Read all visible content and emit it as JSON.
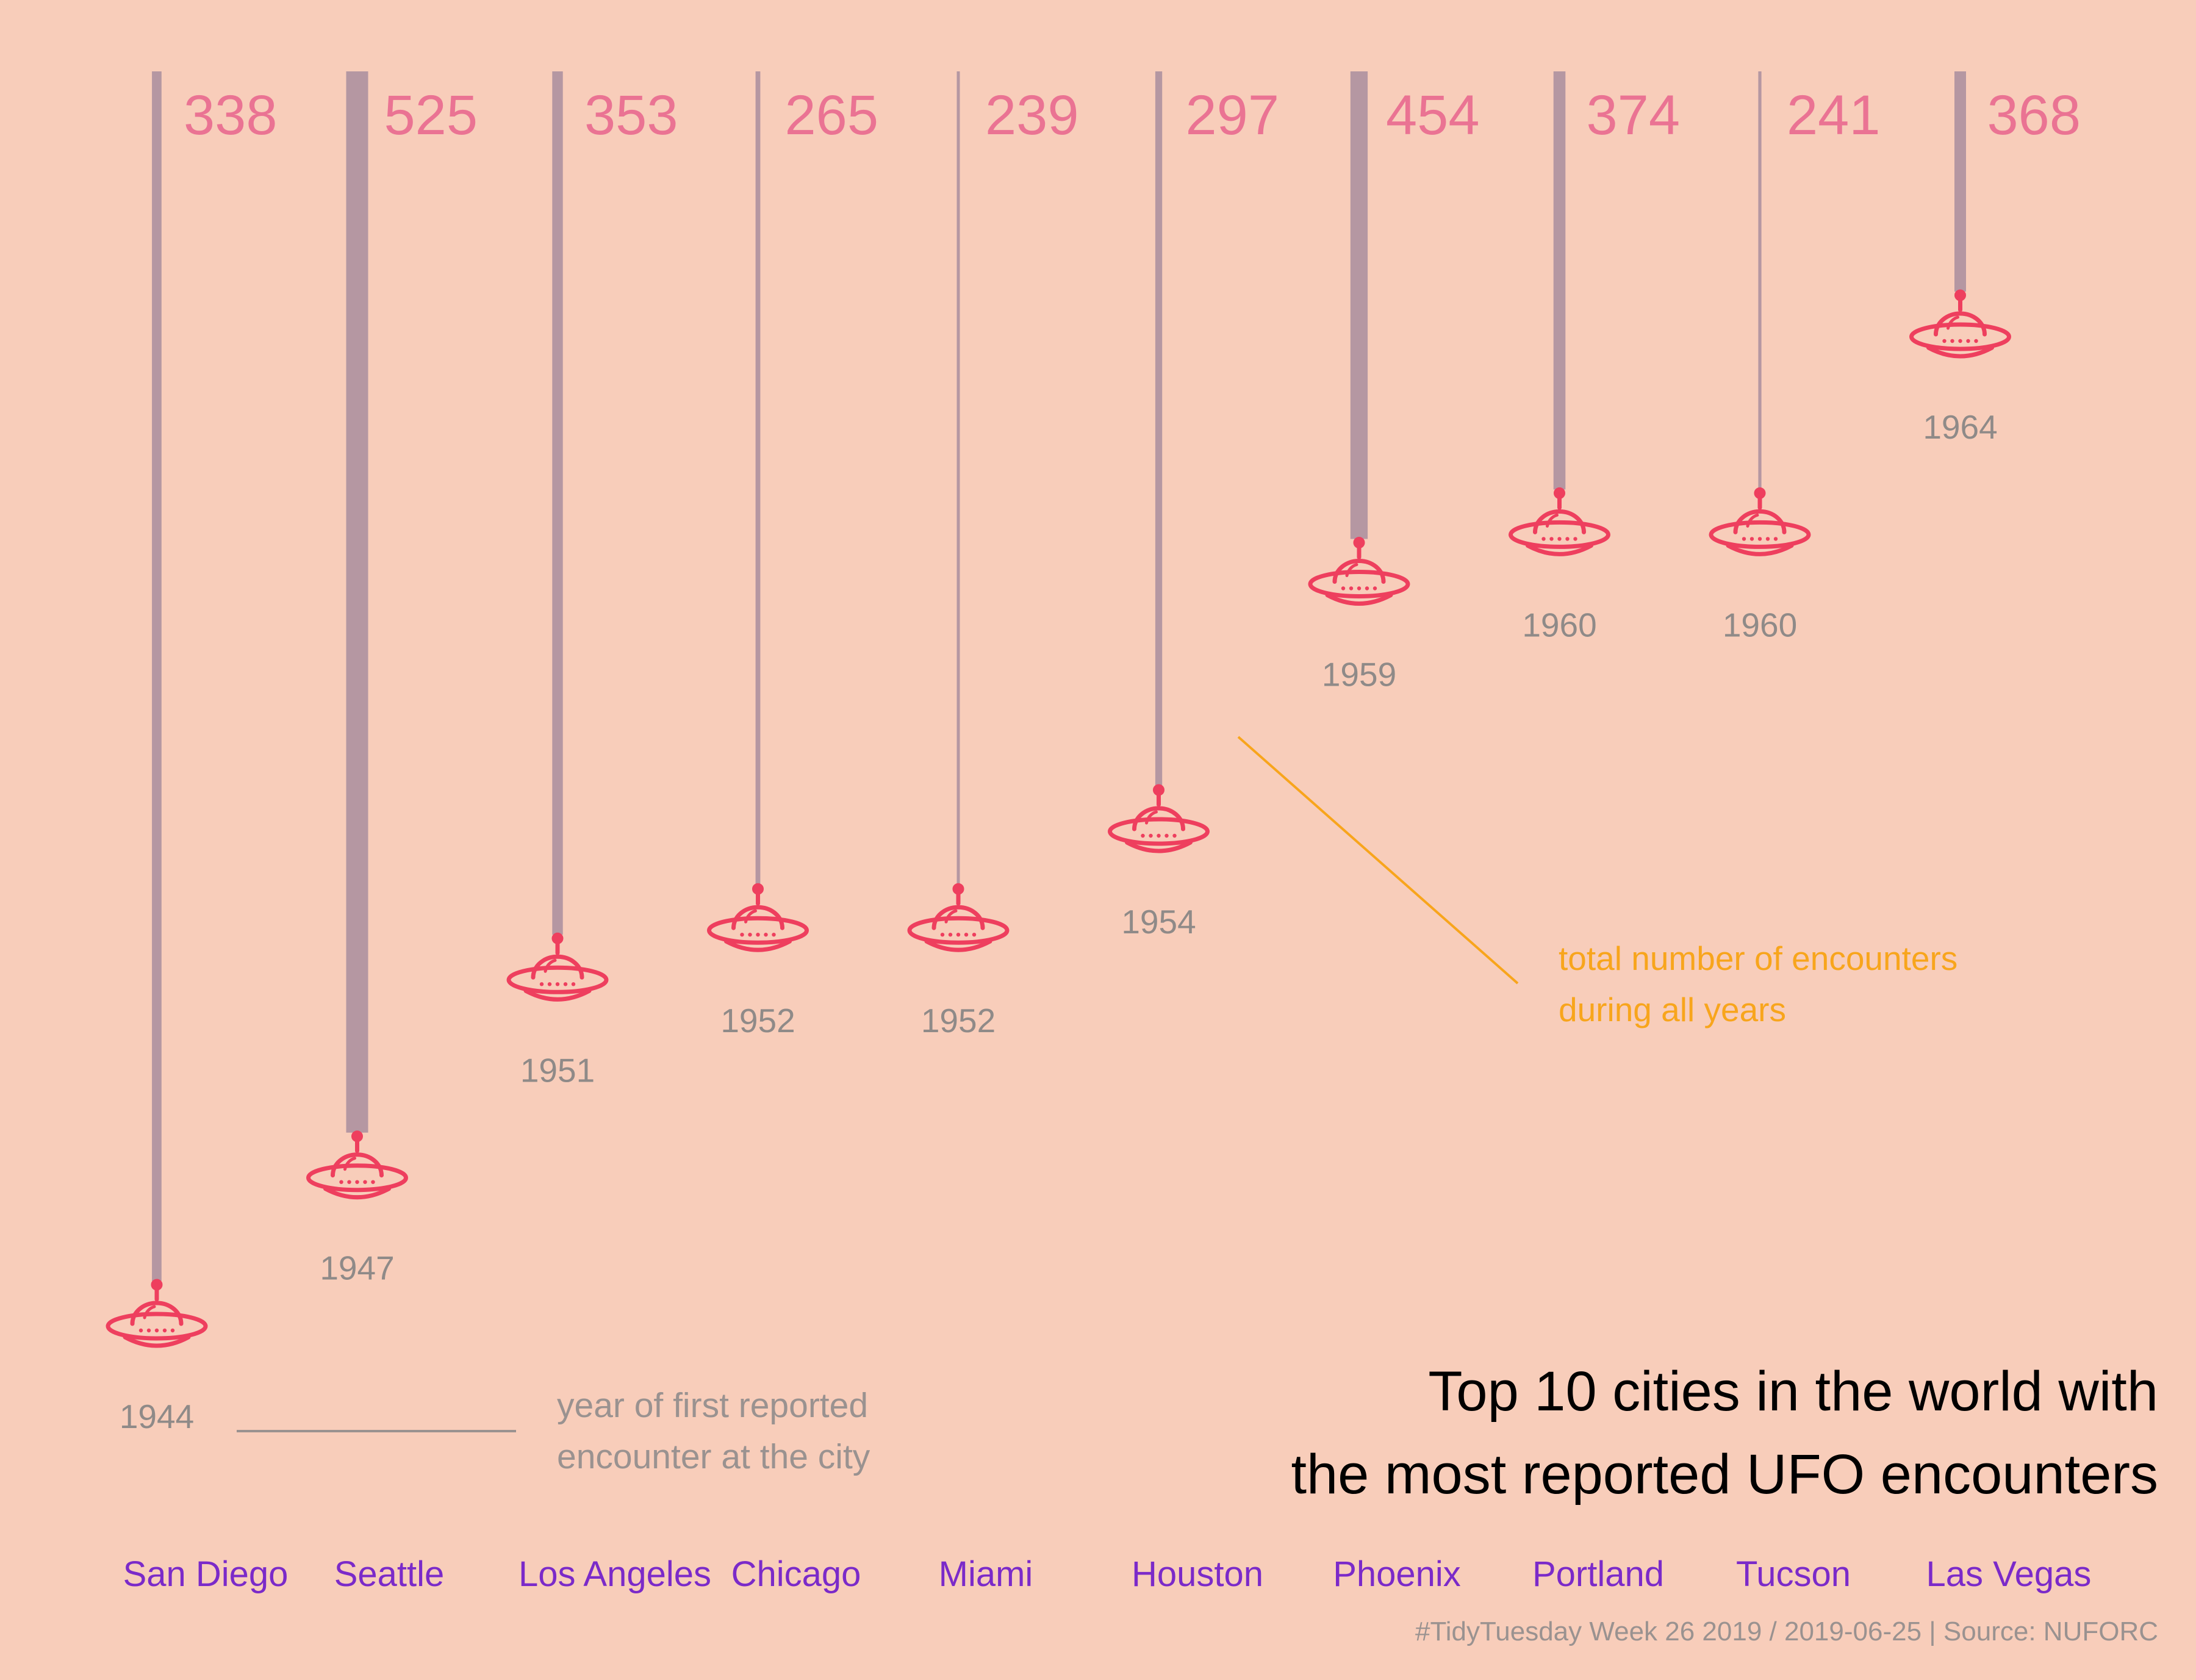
{
  "chart_data": {
    "type": "bar",
    "title_lines": [
      "Top 10 cities in the world with",
      "the most reported UFO encounters"
    ],
    "caption": "#TidyTuesday Week 26 2019 / 2019-06-25 | Source: NUFORC",
    "series": [
      {
        "name": "year of first reported encounter at the city"
      },
      {
        "name": "total number of encounters during all years"
      }
    ],
    "points": [
      {
        "city": "San Diego",
        "first_year": 1944,
        "count": 338
      },
      {
        "city": "Seattle",
        "first_year": 1947,
        "count": 525
      },
      {
        "city": "Los Angeles",
        "first_year": 1951,
        "count": 353
      },
      {
        "city": "Chicago",
        "first_year": 1952,
        "count": 265
      },
      {
        "city": "Miami",
        "first_year": 1952,
        "count": 239
      },
      {
        "city": "Houston",
        "first_year": 1954,
        "count": 297
      },
      {
        "city": "Phoenix",
        "first_year": 1959,
        "count": 454
      },
      {
        "city": "Portland",
        "first_year": 1960,
        "count": 374
      },
      {
        "city": "Tucson",
        "first_year": 1960,
        "count": 241
      },
      {
        "city": "Las Vegas",
        "first_year": 1964,
        "count": 368
      }
    ],
    "annotations": {
      "year_note": [
        "year of first reported",
        "encounter at the city"
      ],
      "count_note": [
        "total number of encounters",
        "during all years"
      ]
    },
    "colors": {
      "background": "#F8CDBA",
      "stem": "#B597A2",
      "ufo": "#EE3F5E",
      "count_label": "#EA7393",
      "year_label": "#8F8A88",
      "city_label": "#7B2AC9",
      "count_note": "#F8A51C",
      "year_note": "#9A9290"
    },
    "icon": "ufo-icon"
  }
}
